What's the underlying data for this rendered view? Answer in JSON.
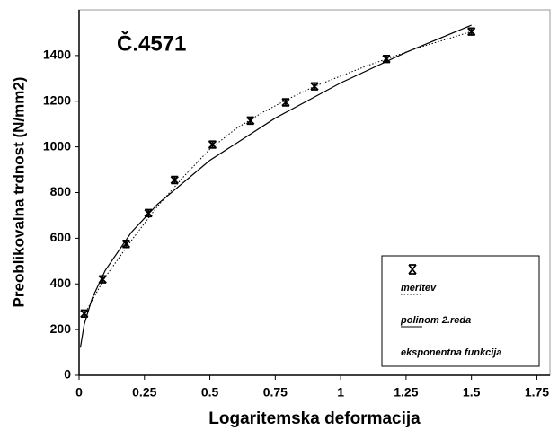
{
  "chart_data": {
    "type": "scatter",
    "annotation": "Č.4571",
    "x_label": "Logaritemska deformacija",
    "y_label": "Preoblikovalna trdnost (N/mm2)",
    "xlim": [
      0,
      1.8
    ],
    "ylim": [
      0,
      1600
    ],
    "xticks": [
      0,
      0.25,
      0.5,
      0.75,
      1,
      1.25,
      1.5,
      1.75
    ],
    "yticks": [
      0,
      200,
      400,
      600,
      800,
      1000,
      1200,
      1400
    ],
    "grid": false,
    "legend": "lower right",
    "series": [
      {
        "name": "meritev",
        "type": "errorbar",
        "color": "#000000",
        "x": [
          0.02,
          0.09,
          0.18,
          0.265,
          0.365,
          0.51,
          0.655,
          0.79,
          0.9,
          1.175,
          1.5
        ],
        "values": [
          270,
          420,
          575,
          710,
          855,
          1010,
          1115,
          1195,
          1265,
          1385,
          1505
        ],
        "errors": [
          15,
          15,
          15,
          15,
          15,
          15,
          15,
          15,
          15,
          15,
          15
        ]
      },
      {
        "name": "polinom 2.reda",
        "type": "dotted",
        "color": "#000000",
        "x": [
          0.02,
          0.1,
          0.2,
          0.3,
          0.4,
          0.5,
          0.6,
          0.7,
          0.8,
          0.9,
          1,
          1.1,
          1.2,
          1.3,
          1.4,
          1.5
        ],
        "values": [
          265,
          430,
          590,
          740,
          870,
          990,
          1080,
          1150,
          1210,
          1265,
          1310,
          1355,
          1395,
          1435,
          1470,
          1505
        ]
      },
      {
        "name": "eksponentna funkcija",
        "type": "solid",
        "color": "#000000",
        "x": [
          0.005,
          0.02,
          0.05,
          0.1,
          0.2,
          0.3,
          0.5,
          0.75,
          1,
          1.25,
          1.5
        ],
        "values": [
          121,
          224,
          337,
          459,
          626,
          749,
          941,
          1126,
          1280,
          1414,
          1533
        ]
      }
    ]
  }
}
